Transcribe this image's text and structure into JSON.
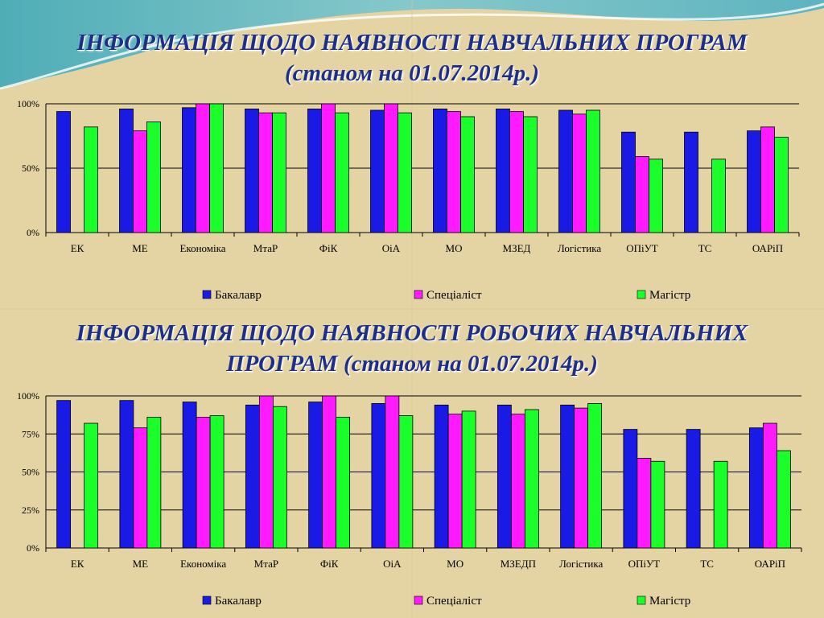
{
  "slide": {
    "title1_line1": "ІНФОРМАЦІЯ ЩОДО НАЯВНОСТІ НАВЧАЛЬНИХ ПРОГРАМ",
    "title1_line2": "(станом на 01.07.2014р.)",
    "title2_line1": "ІНФОРМАЦІЯ ЩОДО НАЯВНОСТІ РОБОЧИХ НАВЧАЛЬНИХ",
    "title2_line2": "ПРОГРАМ (станом на 01.07.2014р.)"
  },
  "colors": {
    "Бакалавр": "#1a1ae6",
    "Спеціаліст": "#ff1aff",
    "Магістр": "#1aff2a",
    "title": "#1e2f88"
  },
  "chart_data": [
    {
      "type": "bar",
      "categories": [
        "ЕК",
        "МЕ",
        "Економіка",
        "МтаР",
        "ФіК",
        "ОіА",
        "МО",
        "МЗЕД",
        "Логістика",
        "ОПіУТ",
        "ТС",
        "ОАРіП"
      ],
      "y_ticks": [
        "100%",
        "50%",
        "0%"
      ],
      "ylim": [
        0,
        100
      ],
      "legend_position": "bottom",
      "series": [
        {
          "name": "Бакалавр",
          "values": [
            94,
            96,
            97,
            96,
            96,
            95,
            96,
            96,
            95,
            78,
            78,
            79
          ]
        },
        {
          "name": "Спеціаліст",
          "values": [
            null,
            79,
            100,
            93,
            100,
            100,
            94,
            94,
            92,
            59,
            null,
            82
          ]
        },
        {
          "name": "Магістр",
          "values": [
            82,
            86,
            100,
            93,
            93,
            93,
            90,
            90,
            95,
            57,
            57,
            74
          ]
        }
      ]
    },
    {
      "type": "bar",
      "categories": [
        "ЕК",
        "МЕ",
        "Економіка",
        "МтаР",
        "ФіК",
        "ОіА",
        "МО",
        "МЗЕДП",
        "Логістика",
        "ОПіУТ",
        "ТС",
        "ОАРіП"
      ],
      "y_ticks": [
        "100%",
        "75%",
        "50%",
        "25%",
        "0%"
      ],
      "ylim": [
        0,
        100
      ],
      "legend_position": "bottom",
      "series": [
        {
          "name": "Бакалавр",
          "values": [
            97,
            97,
            96,
            94,
            96,
            95,
            94,
            94,
            94,
            78,
            78,
            79
          ]
        },
        {
          "name": "Спеціаліст",
          "values": [
            null,
            79,
            86,
            100,
            100,
            100,
            88,
            88,
            92,
            59,
            null,
            82
          ]
        },
        {
          "name": "Магістр",
          "values": [
            82,
            86,
            87,
            93,
            86,
            87,
            90,
            91,
            95,
            57,
            57,
            64
          ]
        }
      ]
    }
  ]
}
